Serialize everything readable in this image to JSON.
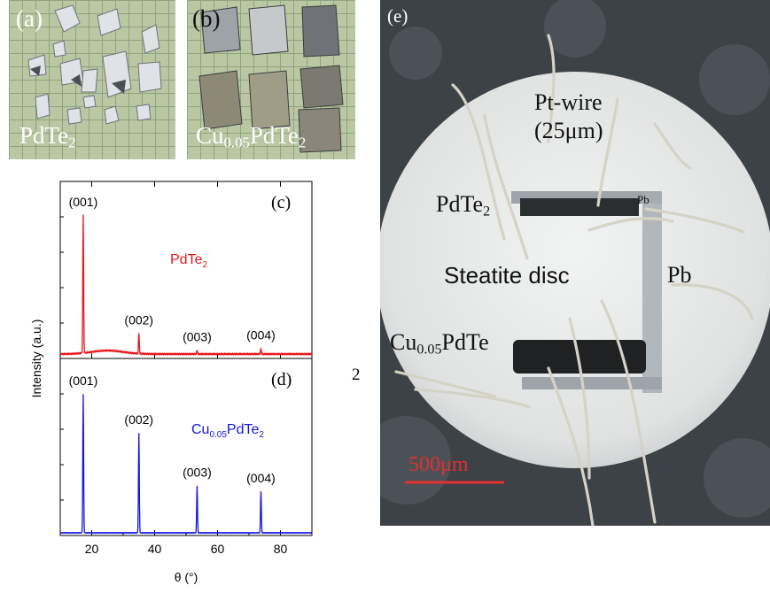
{
  "panel_a": {
    "label": "(a)",
    "sample_base": "PdTe",
    "sample_sub": "2"
  },
  "panel_b": {
    "label": "(b)",
    "sample_base": "Cu",
    "sample_sub1": "0.05",
    "sample_mid": "PdTe",
    "sample_sub2": "2"
  },
  "panel_e": {
    "label": "(e)",
    "pt_wire_line1": "Pt-wire",
    "pt_wire_line2": "(25μm)",
    "pdte2_base": "PdTe",
    "pdte2_sub": "2",
    "pb_small": "Pb",
    "steatite": "Steatite disc",
    "pb_label": "Pb",
    "cu_base": "Cu",
    "cu_sub": "0.05",
    "cu_rest": "PdTe",
    "scale_bar": "500μm"
  },
  "stray_text": "2",
  "chart_data": [
    {
      "type": "line",
      "panel_label": "(c)",
      "series_label_base": "PdTe",
      "series_label_sub": "2",
      "color": "#e8151b",
      "peaks": [
        {
          "x": 17.3,
          "y": 1.0,
          "label": "(001)"
        },
        {
          "x": 35.0,
          "y": 0.15,
          "label": "(002)"
        },
        {
          "x": 53.5,
          "y": 0.028,
          "label": "(003)"
        },
        {
          "x": 73.8,
          "y": 0.04,
          "label": "(004)"
        }
      ],
      "baseline_bump": {
        "center": 25,
        "width": 7,
        "height": 0.025
      }
    },
    {
      "type": "line",
      "panel_label": "(d)",
      "series_label_base": "Cu",
      "series_label_sub1": "0.05",
      "series_label_mid": "PdTe",
      "series_label_sub2": "2",
      "color": "#1515e0",
      "peaks": [
        {
          "x": 17.3,
          "y": 1.0,
          "label": "(001)"
        },
        {
          "x": 35.0,
          "y": 0.72,
          "label": "(002)"
        },
        {
          "x": 53.5,
          "y": 0.34,
          "label": "(003)"
        },
        {
          "x": 73.8,
          "y": 0.3,
          "label": "(004)"
        }
      ]
    }
  ],
  "axes": {
    "ylabel": "Intensity (a.u.)",
    "xlabel": "θ (°)",
    "xlim": [
      10,
      90
    ],
    "xticks": [
      "20",
      "40",
      "60",
      "80"
    ]
  }
}
